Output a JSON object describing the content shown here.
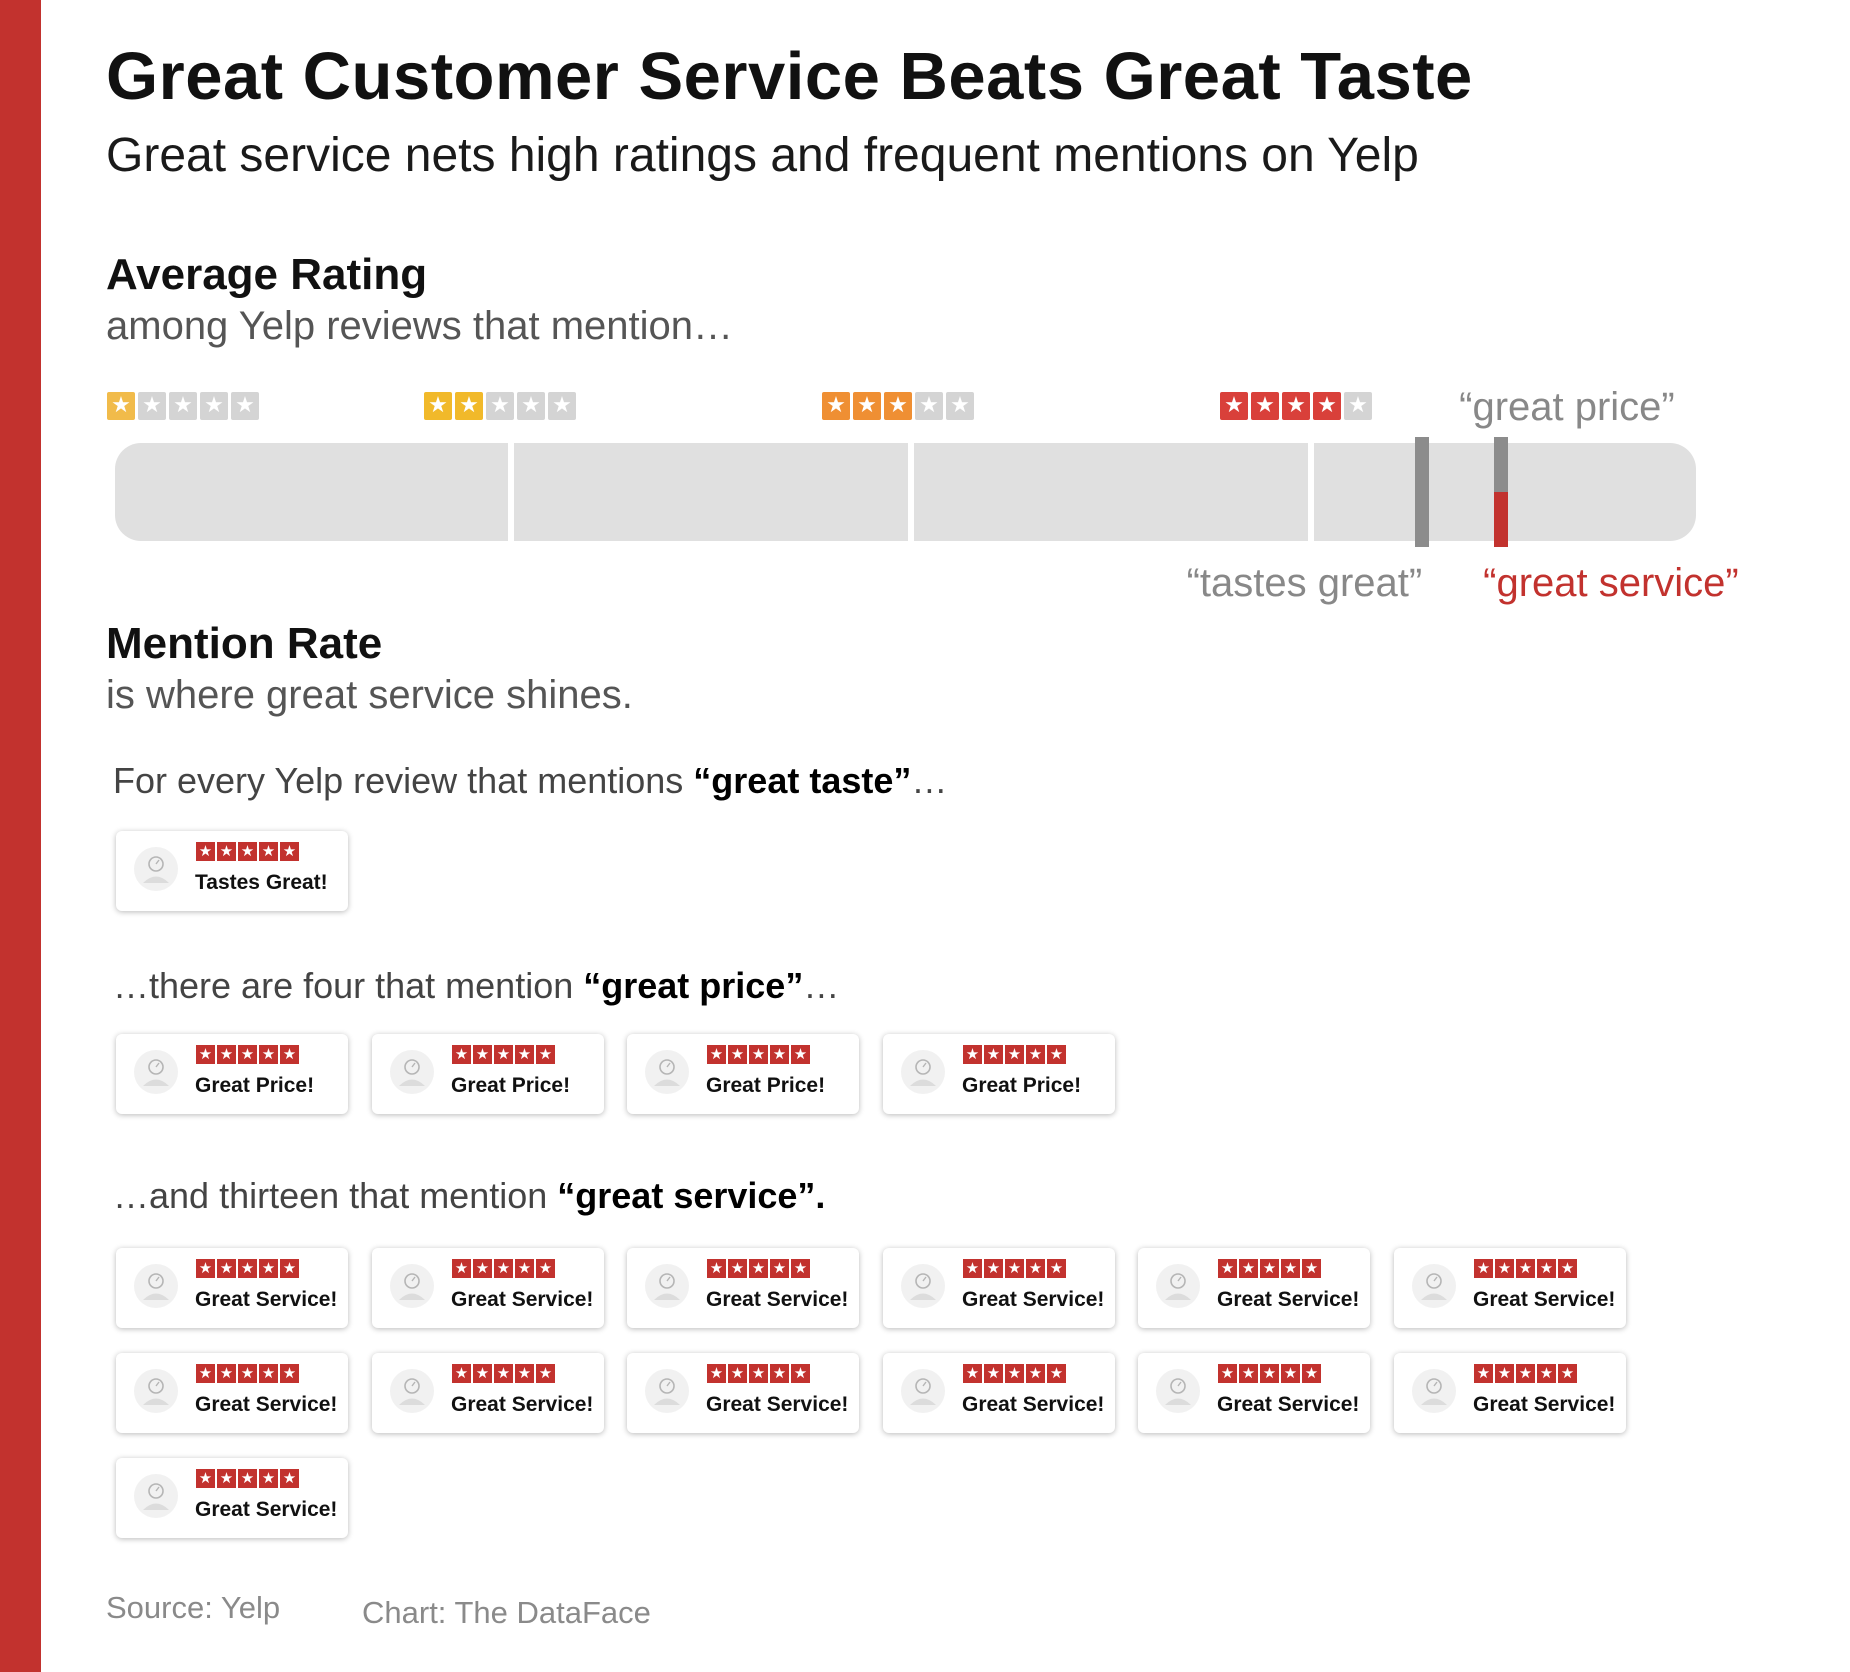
{
  "title": "Great Customer Service Beats Great Taste",
  "subtitle": "Great service nets high ratings and frequent mentions on Yelp",
  "colors": {
    "brand_red": "#c2322e",
    "track": "#e0e0e0",
    "marker_gray": "#8c8c8c",
    "star_empty": "#d4d4d4",
    "star_1": "#f1bb4a",
    "star_2": "#f1b92a",
    "star_3": "#ef8f33",
    "star_4": "#d9403a"
  },
  "average_rating": {
    "heading": "Average Rating",
    "subheading": "among Yelp reviews that mention…"
  },
  "mention_rate": {
    "heading": "Mention Rate",
    "subheading": "is where great service shines.",
    "line1": {
      "pre": "For every Yelp review that mentions ",
      "bold": "“great taste”",
      "post": "…"
    },
    "line2": {
      "pre": "…there are four that mention ",
      "bold": "“great price”",
      "post": "…"
    },
    "line3": {
      "pre": "…and thirteen that mention ",
      "bold": "“great service”.",
      "post": ""
    }
  },
  "chart_data": [
    {
      "type": "bar",
      "title": "Average Rating",
      "subtitle": "among Yelp reviews that mention…",
      "scale_labels": [
        "1 star",
        "2 stars",
        "3 stars",
        "4 stars"
      ],
      "xlim": [
        1,
        5
      ],
      "series": [
        {
          "name": "“tastes great”",
          "value": 4.3,
          "color": "#8c8c8c"
        },
        {
          "name": "“great price”",
          "value": 4.5,
          "color": "#8c8c8c"
        },
        {
          "name": "“great service”",
          "value": 4.5,
          "color": "#c2322e"
        }
      ]
    },
    {
      "type": "table",
      "title": "Mention Rate",
      "subtitle": "is where great service shines.",
      "categories": [
        "great taste",
        "great price",
        "great service"
      ],
      "values": [
        1,
        4,
        13
      ],
      "card_labels": [
        "Tastes Great!",
        "Great Price!",
        "Great Service!"
      ],
      "card_rating": 5
    }
  ],
  "footer": {
    "source": "Source: Yelp",
    "credit": "Chart: The DataFace"
  }
}
